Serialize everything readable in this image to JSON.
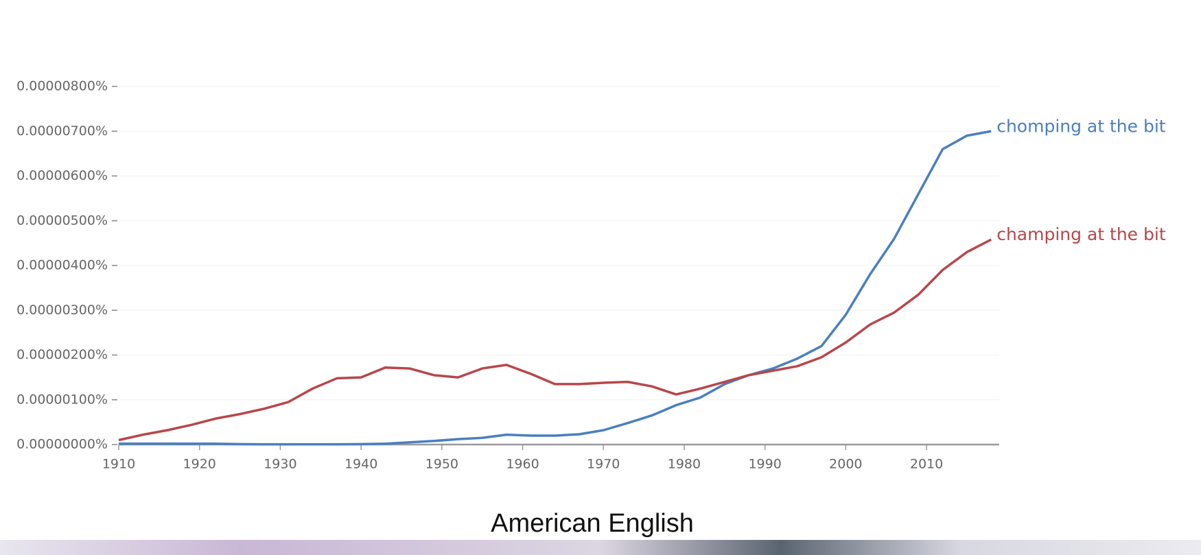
{
  "chart_data": {
    "type": "line",
    "caption": "American English",
    "x": [
      1910,
      1913,
      1916,
      1919,
      1922,
      1925,
      1928,
      1931,
      1934,
      1937,
      1940,
      1943,
      1946,
      1949,
      1952,
      1955,
      1958,
      1961,
      1964,
      1967,
      1970,
      1973,
      1976,
      1979,
      1982,
      1985,
      1988,
      1991,
      1994,
      1997,
      2000,
      2003,
      2006,
      2009,
      2012,
      2015,
      2018
    ],
    "xlim": [
      1910,
      2019
    ],
    "xticks": [
      1910,
      1920,
      1930,
      1940,
      1950,
      1960,
      1970,
      1980,
      1990,
      2000,
      2010
    ],
    "ylim": [
      0,
      8e-06
    ],
    "yticks": [
      {
        "value": 0,
        "label": "0.00000000%"
      },
      {
        "value": 1e-06,
        "label": "0.00000100%"
      },
      {
        "value": 2e-06,
        "label": "0.00000200%"
      },
      {
        "value": 3e-06,
        "label": "0.00000300%"
      },
      {
        "value": 4e-06,
        "label": "0.00000400%"
      },
      {
        "value": 5e-06,
        "label": "0.00000500%"
      },
      {
        "value": 6e-06,
        "label": "0.00000600%"
      },
      {
        "value": 7e-06,
        "label": "0.00000700%"
      },
      {
        "value": 8e-06,
        "label": "0.00000800%"
      }
    ],
    "grid": true,
    "series": [
      {
        "name": "chomping at the bit",
        "color": "#4a7fc0",
        "values": [
          2e-08,
          2e-08,
          2e-08,
          2e-08,
          2e-08,
          1e-08,
          5e-09,
          5e-09,
          5e-09,
          5e-09,
          1e-08,
          2e-08,
          5e-08,
          8e-08,
          1.2e-07,
          1.5e-07,
          2.2e-07,
          2e-07,
          2e-07,
          2.3e-07,
          3.2e-07,
          4.8e-07,
          6.5e-07,
          8.8e-07,
          1.05e-06,
          1.35e-06,
          1.55e-06,
          1.7e-06,
          1.92e-06,
          2.2e-06,
          2.9e-06,
          3.8e-06,
          4.6e-06,
          5.6e-06,
          6.6e-06,
          6.9e-06,
          7e-06
        ]
      },
      {
        "name": "champing at the bit",
        "color": "#b8464a",
        "values": [
          1e-07,
          2.2e-07,
          3.2e-07,
          4.4e-07,
          5.8e-07,
          6.8e-07,
          8e-07,
          9.5e-07,
          1.25e-06,
          1.48e-06,
          1.5e-06,
          1.72e-06,
          1.7e-06,
          1.55e-06,
          1.5e-06,
          1.7e-06,
          1.78e-06,
          1.58e-06,
          1.35e-06,
          1.35e-06,
          1.38e-06,
          1.4e-06,
          1.3e-06,
          1.12e-06,
          1.25e-06,
          1.4e-06,
          1.55e-06,
          1.65e-06,
          1.75e-06,
          1.95e-06,
          2.28e-06,
          2.68e-06,
          2.95e-06,
          3.35e-06,
          3.9e-06,
          4.3e-06,
          4.58e-06
        ]
      }
    ]
  }
}
